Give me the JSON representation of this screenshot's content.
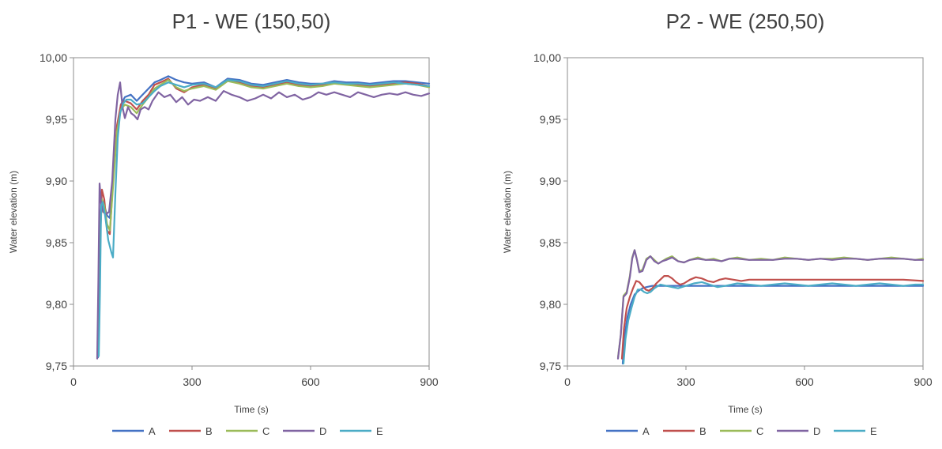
{
  "chart_data": [
    {
      "type": "line",
      "title": "P1 - WE (150,50)",
      "xlabel": "Time (s)",
      "ylabel": "Water elevation (m)",
      "xlim": [
        0,
        900
      ],
      "ylim": [
        9.75,
        10.0
      ],
      "xticks": [
        0,
        300,
        600,
        900
      ],
      "xtick_labels": [
        "0",
        "300",
        "600",
        "900"
      ],
      "yticks": [
        9.75,
        9.8,
        9.85,
        9.9,
        9.95,
        10.0
      ],
      "ytick_labels": [
        "9,75",
        "9,80",
        "9,85",
        "9,90",
        "9,95",
        "10,00"
      ],
      "grid": false,
      "legend": "bottom",
      "series": [
        {
          "name": "A",
          "color": "#4472C4",
          "x": [
            62,
            65,
            68,
            72,
            78,
            85,
            92,
            100,
            110,
            120,
            130,
            145,
            160,
            175,
            190,
            205,
            220,
            240,
            260,
            280,
            300,
            330,
            360,
            390,
            420,
            450,
            480,
            510,
            540,
            570,
            600,
            630,
            660,
            690,
            720,
            750,
            780,
            810,
            840,
            870,
            900
          ],
          "y": [
            9.757,
            9.82,
            9.87,
            9.885,
            9.88,
            9.872,
            9.87,
            9.9,
            9.94,
            9.962,
            9.968,
            9.97,
            9.965,
            9.97,
            9.975,
            9.98,
            9.982,
            9.985,
            9.982,
            9.98,
            9.979,
            9.98,
            9.976,
            9.983,
            9.982,
            9.979,
            9.978,
            9.98,
            9.982,
            9.98,
            9.979,
            9.979,
            9.981,
            9.98,
            9.98,
            9.979,
            9.98,
            9.981,
            9.981,
            9.98,
            9.979
          ]
        },
        {
          "name": "B",
          "color": "#C0504D",
          "x": [
            62,
            65,
            68,
            72,
            78,
            85,
            92,
            100,
            110,
            120,
            130,
            145,
            160,
            175,
            190,
            205,
            220,
            240,
            260,
            280,
            300,
            330,
            360,
            390,
            420,
            450,
            480,
            510,
            540,
            570,
            600,
            630,
            660,
            690,
            720,
            750,
            780,
            810,
            840,
            870,
            900
          ],
          "y": [
            9.76,
            9.8,
            9.86,
            9.893,
            9.885,
            9.86,
            9.857,
            9.9,
            9.945,
            9.962,
            9.965,
            9.963,
            9.958,
            9.965,
            9.97,
            9.978,
            9.98,
            9.983,
            9.975,
            9.972,
            9.976,
            9.978,
            9.975,
            9.982,
            9.98,
            9.977,
            9.976,
            9.978,
            9.98,
            9.978,
            9.977,
            9.978,
            9.98,
            9.979,
            9.978,
            9.977,
            9.978,
            9.979,
            9.98,
            9.979,
            9.977
          ]
        },
        {
          "name": "C",
          "color": "#9BBB59",
          "x": [
            62,
            65,
            68,
            72,
            78,
            85,
            92,
            100,
            110,
            120,
            130,
            145,
            160,
            175,
            190,
            205,
            220,
            240,
            260,
            280,
            300,
            330,
            360,
            390,
            420,
            450,
            480,
            510,
            540,
            570,
            600,
            630,
            660,
            690,
            720,
            750,
            780,
            810,
            840,
            870,
            900
          ],
          "y": [
            9.758,
            9.8,
            9.86,
            9.885,
            9.88,
            9.865,
            9.86,
            9.895,
            9.94,
            9.958,
            9.962,
            9.96,
            9.955,
            9.962,
            9.968,
            9.975,
            9.978,
            9.982,
            9.976,
            9.973,
            9.975,
            9.977,
            9.974,
            9.981,
            9.979,
            9.976,
            9.975,
            9.977,
            9.979,
            9.977,
            9.976,
            9.977,
            9.979,
            9.978,
            9.977,
            9.976,
            9.977,
            9.978,
            9.979,
            9.978,
            9.976
          ]
        },
        {
          "name": "D",
          "color": "#8064A2",
          "x": [
            60,
            63,
            66,
            70,
            75,
            82,
            90,
            98,
            106,
            112,
            118,
            124,
            130,
            138,
            146,
            154,
            162,
            170,
            180,
            190,
            200,
            215,
            230,
            245,
            260,
            275,
            290,
            305,
            320,
            340,
            360,
            380,
            400,
            420,
            440,
            460,
            480,
            500,
            520,
            540,
            560,
            580,
            600,
            620,
            640,
            660,
            680,
            700,
            720,
            740,
            760,
            780,
            800,
            820,
            840,
            860,
            880,
            900
          ],
          "y": [
            9.756,
            9.82,
            9.898,
            9.882,
            9.875,
            9.873,
            9.875,
            9.9,
            9.95,
            9.97,
            9.98,
            9.96,
            9.951,
            9.96,
            9.955,
            9.953,
            9.95,
            9.958,
            9.96,
            9.958,
            9.965,
            9.972,
            9.968,
            9.97,
            9.964,
            9.968,
            9.962,
            9.966,
            9.965,
            9.968,
            9.965,
            9.973,
            9.97,
            9.968,
            9.965,
            9.967,
            9.97,
            9.967,
            9.972,
            9.968,
            9.97,
            9.966,
            9.968,
            9.972,
            9.97,
            9.972,
            9.97,
            9.968,
            9.972,
            9.97,
            9.968,
            9.97,
            9.971,
            9.97,
            9.972,
            9.97,
            9.969,
            9.971
          ]
        },
        {
          "name": "E",
          "color": "#4BACC6",
          "x": [
            64,
            67,
            70,
            74,
            80,
            88,
            96,
            100,
            106,
            112,
            118,
            126,
            134,
            145,
            160,
            175,
            190,
            205,
            220,
            240,
            260,
            280,
            300,
            330,
            360,
            390,
            420,
            450,
            480,
            510,
            540,
            570,
            600,
            630,
            660,
            690,
            720,
            750,
            780,
            810,
            840,
            870,
            900
          ],
          "y": [
            9.758,
            9.81,
            9.88,
            9.883,
            9.872,
            9.852,
            9.842,
            9.838,
            9.89,
            9.935,
            9.955,
            9.963,
            9.966,
            9.966,
            9.962,
            9.963,
            9.968,
            9.973,
            9.977,
            9.98,
            9.978,
            9.976,
            9.978,
            9.979,
            9.976,
            9.982,
            9.981,
            9.978,
            9.977,
            9.979,
            9.981,
            9.979,
            9.978,
            9.979,
            9.98,
            9.979,
            9.979,
            9.978,
            9.979,
            9.98,
            9.979,
            9.978,
            9.977
          ]
        }
      ]
    },
    {
      "type": "line",
      "title": "P2 - WE (250,50)",
      "xlabel": "Time (s)",
      "ylabel": "Water elevation (m)",
      "xlim": [
        0,
        900
      ],
      "ylim": [
        9.75,
        10.0
      ],
      "xticks": [
        0,
        300,
        600,
        900
      ],
      "xtick_labels": [
        "0",
        "300",
        "600",
        "900"
      ],
      "yticks": [
        9.75,
        9.8,
        9.85,
        9.9,
        9.95,
        10.0
      ],
      "ytick_labels": [
        "9,75",
        "9,80",
        "9,85",
        "9,90",
        "9,95",
        "10,00"
      ],
      "grid": false,
      "legend": "bottom",
      "series": [
        {
          "name": "A",
          "color": "#4472C4",
          "x": [
            140,
            145,
            152,
            160,
            170,
            180,
            190,
            200,
            215,
            230,
            250,
            270,
            300,
            330,
            360,
            400,
            450,
            500,
            550,
            600,
            650,
            700,
            750,
            800,
            850,
            900
          ],
          "y": [
            9.752,
            9.775,
            9.79,
            9.8,
            9.808,
            9.811,
            9.813,
            9.814,
            9.815,
            9.815,
            9.815,
            9.815,
            9.815,
            9.815,
            9.815,
            9.815,
            9.815,
            9.815,
            9.815,
            9.815,
            9.815,
            9.815,
            9.815,
            9.815,
            9.815,
            9.815
          ]
        },
        {
          "name": "B",
          "color": "#C0504D",
          "x": [
            138,
            143,
            150,
            158,
            166,
            174,
            182,
            190,
            198,
            206,
            215,
            225,
            235,
            245,
            255,
            265,
            275,
            285,
            295,
            310,
            325,
            340,
            355,
            370,
            385,
            400,
            420,
            440,
            460,
            480,
            500,
            550,
            600,
            650,
            700,
            750,
            800,
            850,
            900
          ],
          "y": [
            9.756,
            9.78,
            9.797,
            9.806,
            9.813,
            9.819,
            9.818,
            9.815,
            9.812,
            9.811,
            9.813,
            9.817,
            9.82,
            9.823,
            9.823,
            9.821,
            9.818,
            9.816,
            9.817,
            9.82,
            9.822,
            9.821,
            9.819,
            9.818,
            9.82,
            9.821,
            9.82,
            9.819,
            9.82,
            9.82,
            9.82,
            9.82,
            9.82,
            9.82,
            9.82,
            9.82,
            9.82,
            9.82,
            9.819
          ]
        },
        {
          "name": "C",
          "color": "#9BBB59",
          "x": [
            128,
            135,
            142,
            150,
            158,
            164,
            170,
            176,
            182,
            190,
            200,
            210,
            220,
            230,
            240,
            250,
            265,
            280,
            295,
            310,
            330,
            350,
            370,
            390,
            410,
            430,
            460,
            490,
            520,
            550,
            580,
            610,
            640,
            670,
            700,
            730,
            760,
            790,
            820,
            850,
            880,
            900
          ],
          "y": [
            9.757,
            9.775,
            9.807,
            9.81,
            9.823,
            9.838,
            9.844,
            9.836,
            9.827,
            9.828,
            9.837,
            9.839,
            9.836,
            9.833,
            9.835,
            9.837,
            9.839,
            9.835,
            9.834,
            9.836,
            9.838,
            9.836,
            9.837,
            9.835,
            9.837,
            9.838,
            9.836,
            9.837,
            9.836,
            9.838,
            9.837,
            9.836,
            9.837,
            9.837,
            9.838,
            9.837,
            9.836,
            9.837,
            9.838,
            9.837,
            9.836,
            9.837
          ]
        },
        {
          "name": "D",
          "color": "#8064A2",
          "x": [
            128,
            135,
            142,
            150,
            158,
            164,
            170,
            176,
            182,
            190,
            200,
            210,
            220,
            230,
            240,
            250,
            265,
            280,
            295,
            310,
            330,
            350,
            370,
            390,
            410,
            430,
            460,
            490,
            520,
            550,
            580,
            610,
            640,
            670,
            700,
            730,
            760,
            790,
            820,
            850,
            880,
            900
          ],
          "y": [
            9.756,
            9.775,
            9.806,
            9.809,
            9.822,
            9.837,
            9.844,
            9.836,
            9.826,
            9.827,
            9.836,
            9.839,
            9.835,
            9.833,
            9.835,
            9.836,
            9.838,
            9.835,
            9.834,
            9.836,
            9.837,
            9.836,
            9.836,
            9.835,
            9.837,
            9.837,
            9.836,
            9.836,
            9.836,
            9.837,
            9.837,
            9.836,
            9.837,
            9.836,
            9.837,
            9.837,
            9.836,
            9.837,
            9.837,
            9.837,
            9.836,
            9.836
          ]
        },
        {
          "name": "E",
          "color": "#4BACC6",
          "x": [
            142,
            147,
            154,
            162,
            170,
            178,
            186,
            194,
            202,
            210,
            220,
            235,
            250,
            265,
            280,
            300,
            320,
            340,
            360,
            380,
            400,
            430,
            460,
            490,
            520,
            550,
            580,
            610,
            640,
            670,
            700,
            730,
            760,
            790,
            820,
            850,
            880,
            900
          ],
          "y": [
            9.752,
            9.772,
            9.787,
            9.797,
            9.806,
            9.812,
            9.812,
            9.81,
            9.809,
            9.81,
            9.813,
            9.816,
            9.815,
            9.814,
            9.813,
            9.815,
            9.817,
            9.818,
            9.816,
            9.814,
            9.815,
            9.817,
            9.816,
            9.815,
            9.816,
            9.817,
            9.816,
            9.815,
            9.816,
            9.817,
            9.816,
            9.815,
            9.816,
            9.817,
            9.816,
            9.815,
            9.816,
            9.816
          ]
        }
      ]
    }
  ]
}
